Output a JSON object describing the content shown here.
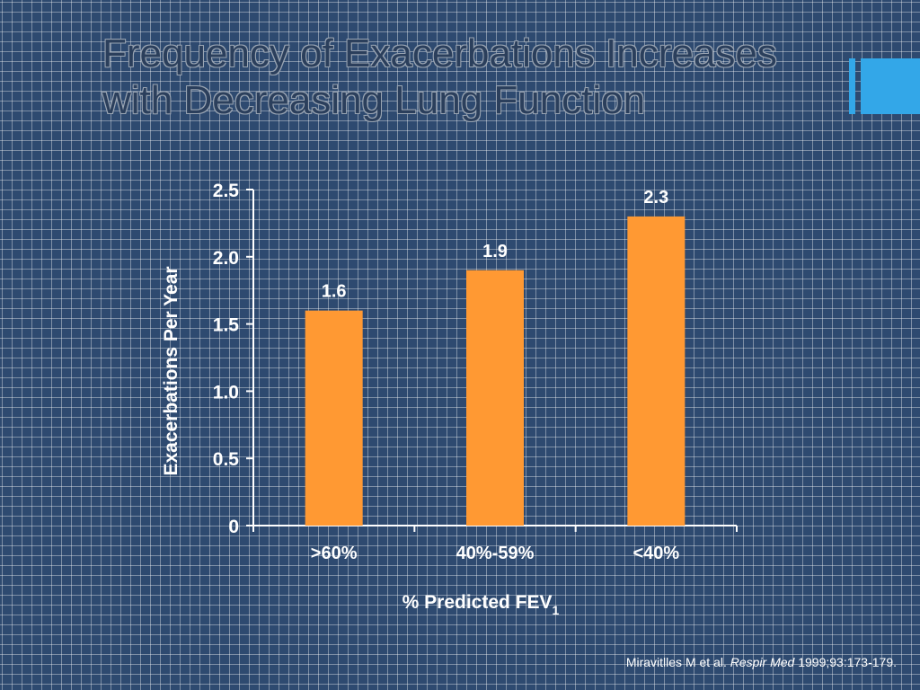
{
  "slide": {
    "title_line1": "Frequency of Exacerbations Increases",
    "title_line2": "with Decreasing Lung Function",
    "accent_color": "#33a7e8",
    "citation": {
      "authors": "Miravitlles M et al.",
      "journal": "Respir Med",
      "details": "1999;93:173-179."
    }
  },
  "chart_data": {
    "type": "bar",
    "categories": [
      ">60%",
      "40%-59%",
      "<40%"
    ],
    "values": [
      1.6,
      1.9,
      2.3
    ],
    "data_labels": [
      "1.6",
      "1.9",
      "2.3"
    ],
    "title": "",
    "xlabel": "% Predicted FEV",
    "xlabel_subscript": "1",
    "ylabel": "Exacerbations Per Year",
    "ylim": [
      0,
      2.5
    ],
    "yticks": [
      {
        "value": 0,
        "label": "0"
      },
      {
        "value": 0.5,
        "label": "0.5"
      },
      {
        "value": 1.0,
        "label": "1.0"
      },
      {
        "value": 1.5,
        "label": "1.5"
      },
      {
        "value": 2.0,
        "label": "2.0"
      },
      {
        "value": 2.5,
        "label": "2.5"
      }
    ],
    "bar_color": "#ff9933",
    "grid": false
  }
}
